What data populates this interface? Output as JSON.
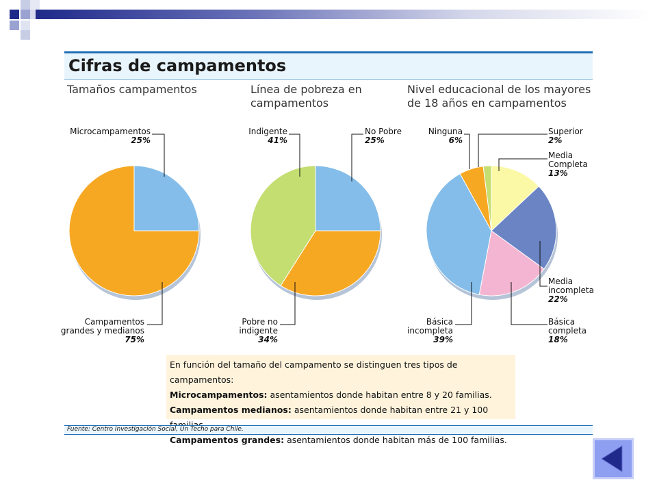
{
  "slide_title": "Cifras de campamentos",
  "section_titles": {
    "size": [
      "Tamaños campamentos"
    ],
    "poverty": [
      "Línea de pobreza en",
      "campamentos"
    ],
    "education": [
      "Nivel educacional de los mayores",
      "de 18 años en campamentos"
    ]
  },
  "chart_data": [
    {
      "type": "pie",
      "title": "Tamaños campamentos",
      "categories": [
        "Microcampamentos",
        "Campamentos grandes y medianos"
      ],
      "values": [
        25,
        75
      ],
      "labels": [
        {
          "lines": [
            "Microcampamentos"
          ],
          "pct": "25%"
        },
        {
          "lines": [
            "Campamentos",
            "grandes y medianos"
          ],
          "pct": "75%"
        }
      ],
      "colors": [
        "#84bde9",
        "#f7a823"
      ]
    },
    {
      "type": "pie",
      "title": "Línea de pobreza en campamentos",
      "categories": [
        "No Pobre",
        "Pobre no indigente",
        "Indigente"
      ],
      "values": [
        25,
        34,
        41
      ],
      "labels": [
        {
          "lines": [
            "No Pobre"
          ],
          "pct": "25%"
        },
        {
          "lines": [
            "Pobre no",
            "indigente"
          ],
          "pct": "34%"
        },
        {
          "lines": [
            "Indigente"
          ],
          "pct": "41%"
        }
      ],
      "colors": [
        "#84bde9",
        "#f7a823",
        "#c4de72"
      ]
    },
    {
      "type": "pie",
      "title": "Nivel educacional de los mayores de 18 años en campamentos",
      "categories": [
        "Media Completa",
        "Media incompleta",
        "Básica completa",
        "Básica incompleta",
        "Ninguna",
        "Superior"
      ],
      "values": [
        13,
        22,
        18,
        39,
        6,
        2
      ],
      "labels": [
        {
          "lines": [
            "Media",
            "Completa"
          ],
          "pct": "13%"
        },
        {
          "lines": [
            "Media",
            "incompleta"
          ],
          "pct": "22%"
        },
        {
          "lines": [
            "Básica",
            "completa"
          ],
          "pct": "18%"
        },
        {
          "lines": [
            "Básica",
            "incompleta"
          ],
          "pct": "39%"
        },
        {
          "lines": [
            "Ninguna"
          ],
          "pct": "6%"
        },
        {
          "lines": [
            "Superior"
          ],
          "pct": "2%"
        }
      ],
      "colors": [
        "#fbf9a6",
        "#6a84c4",
        "#f4b5d2",
        "#84bde9",
        "#f7a823",
        "#c4de72"
      ]
    }
  ],
  "note": {
    "intro": "En función del tamaño del campamento se distinguen tres tipos de campamentos:",
    "items": [
      {
        "term": "Microcampamentos:",
        "text": " asentamientos donde habitan entre 8 y 20 familias."
      },
      {
        "term": "Campamentos medianos:",
        "text": " asentamientos donde habitan entre 21 y 100 familias."
      },
      {
        "term": "Campamentos grandes:",
        "text": " asentamientos donde habitan más de 100 familias."
      }
    ]
  },
  "source": "Fuente: Centro Investigación Social, Un Techo para Chile.",
  "nav": {
    "back_icon": "triangle-left-icon"
  }
}
